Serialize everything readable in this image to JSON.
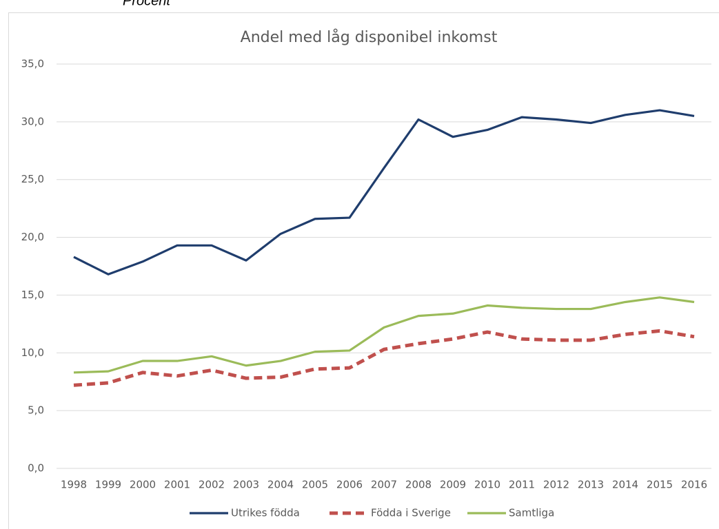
{
  "chart_data": {
    "type": "line",
    "unit_label": "Procent",
    "title": "Andel med låg disponibel inkomst",
    "categories": [
      "1998",
      "1999",
      "2000",
      "2001",
      "2002",
      "2003",
      "2004",
      "2005",
      "2006",
      "2007",
      "2008",
      "2009",
      "2010",
      "2011",
      "2012",
      "2013",
      "2014",
      "2015",
      "2016"
    ],
    "series": [
      {
        "name": "Utrikes födda",
        "color": "#1f3d6d",
        "line_style": "solid",
        "values": [
          18.3,
          16.8,
          17.9,
          19.3,
          19.3,
          18.0,
          20.3,
          21.6,
          21.7,
          26.0,
          30.2,
          28.7,
          29.3,
          30.4,
          30.2,
          29.9,
          30.6,
          31.0,
          30.5
        ]
      },
      {
        "name": "Födda i Sverige",
        "color": "#c0504d",
        "line_style": "dashed",
        "values": [
          7.2,
          7.4,
          8.3,
          8.0,
          8.5,
          7.8,
          7.9,
          8.6,
          8.7,
          10.3,
          10.8,
          11.2,
          11.8,
          11.2,
          11.1,
          11.1,
          11.6,
          11.9,
          11.4
        ]
      },
      {
        "name": "Samtliga",
        "color": "#9bbb59",
        "line_style": "solid",
        "values": [
          8.3,
          8.4,
          9.3,
          9.3,
          9.7,
          8.9,
          9.3,
          10.1,
          10.2,
          12.2,
          13.2,
          13.4,
          14.1,
          13.9,
          13.8,
          13.8,
          14.4,
          14.8,
          14.4
        ]
      }
    ],
    "ylim": [
      0,
      35
    ],
    "yticks": [
      {
        "value": 0,
        "label": "0,0"
      },
      {
        "value": 5,
        "label": "5,0"
      },
      {
        "value": 10,
        "label": "10,0"
      },
      {
        "value": 15,
        "label": "15,0"
      },
      {
        "value": 20,
        "label": "20,0"
      },
      {
        "value": 25,
        "label": "25,0"
      },
      {
        "value": 30,
        "label": "30,0"
      },
      {
        "value": 35,
        "label": "35,0"
      }
    ],
    "grid": true,
    "legend": "bottom"
  }
}
